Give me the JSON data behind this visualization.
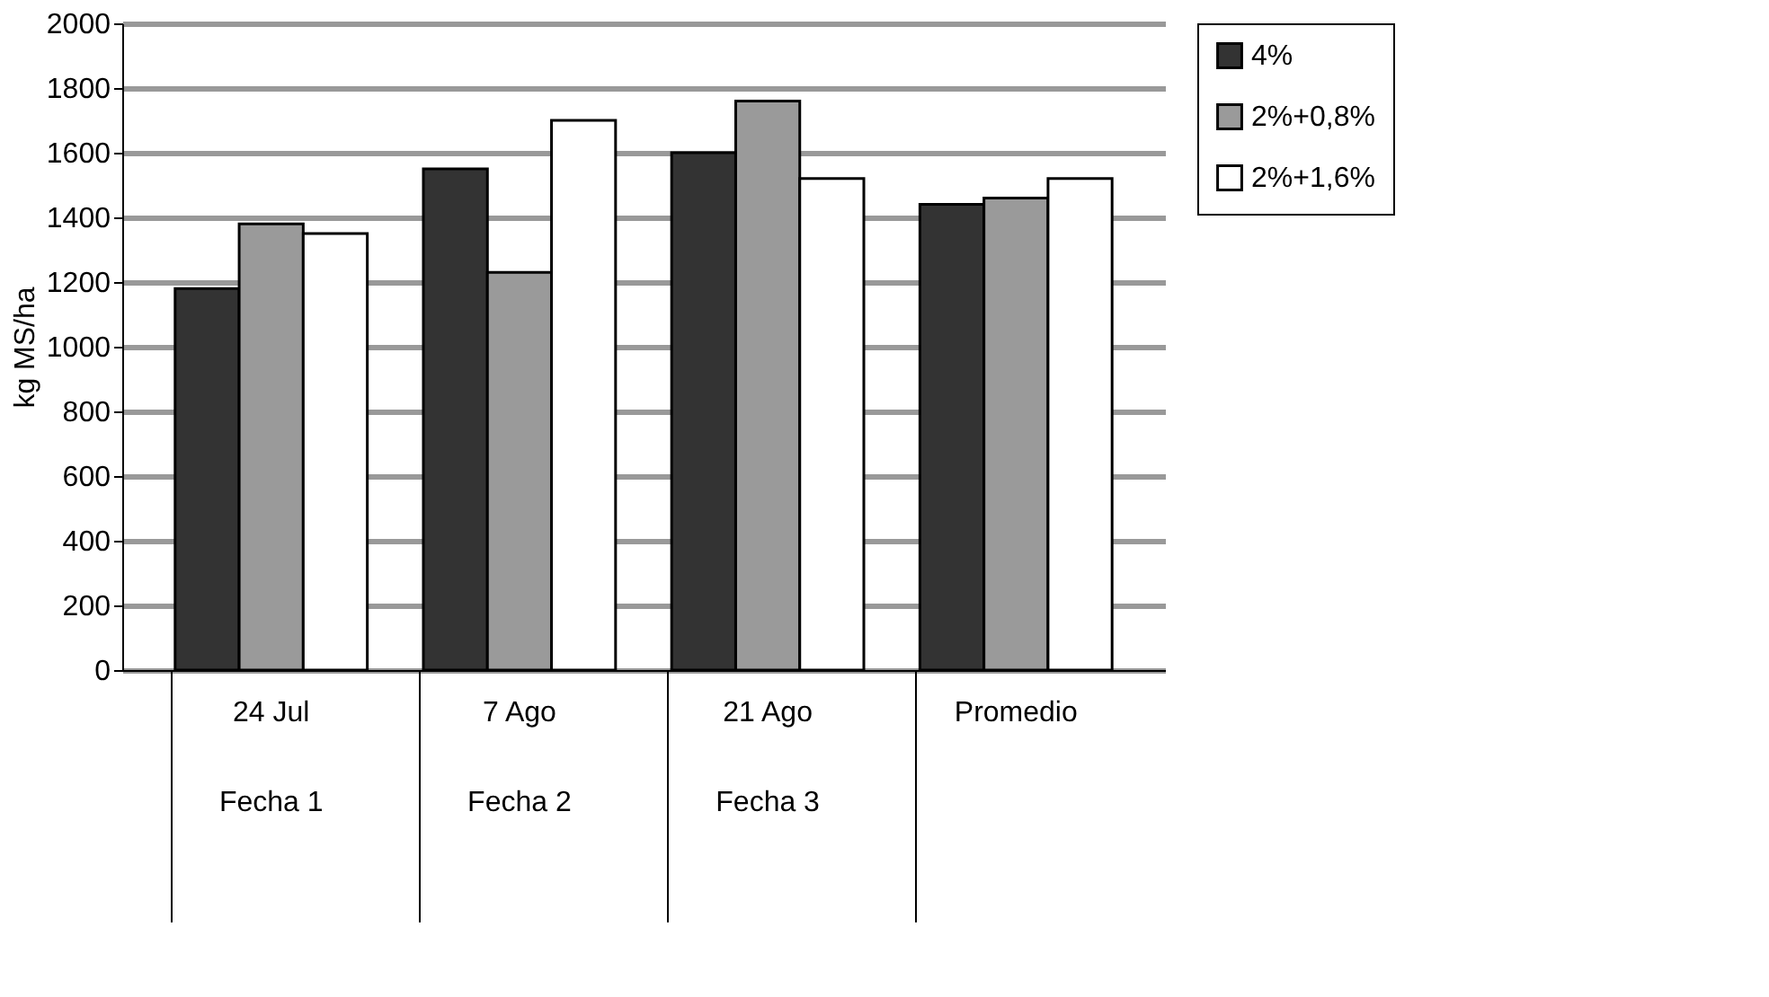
{
  "chart_data": {
    "type": "bar",
    "ylabel": "kg MS/ha",
    "categories": [
      "24 Jul\nFecha 1",
      "7 Ago\nFecha 2",
      "21 Ago\nFecha 3",
      "Promedio"
    ],
    "series": [
      {
        "name": "4%",
        "color": "#333333",
        "values": [
          1180,
          1550,
          1600,
          1440
        ]
      },
      {
        "name": "2%+0,8%",
        "color": "#9a9a9a",
        "values": [
          1380,
          1230,
          1760,
          1460
        ]
      },
      {
        "name": "2%+1,6%",
        "color": "#ffffff",
        "values": [
          1350,
          1700,
          1520,
          1520
        ]
      }
    ],
    "ylim": [
      0,
      2000
    ],
    "yticks": [
      0,
      200,
      400,
      600,
      800,
      1000,
      1200,
      1400,
      1600,
      1800,
      2000
    ],
    "grid": "y",
    "legend": "right"
  }
}
